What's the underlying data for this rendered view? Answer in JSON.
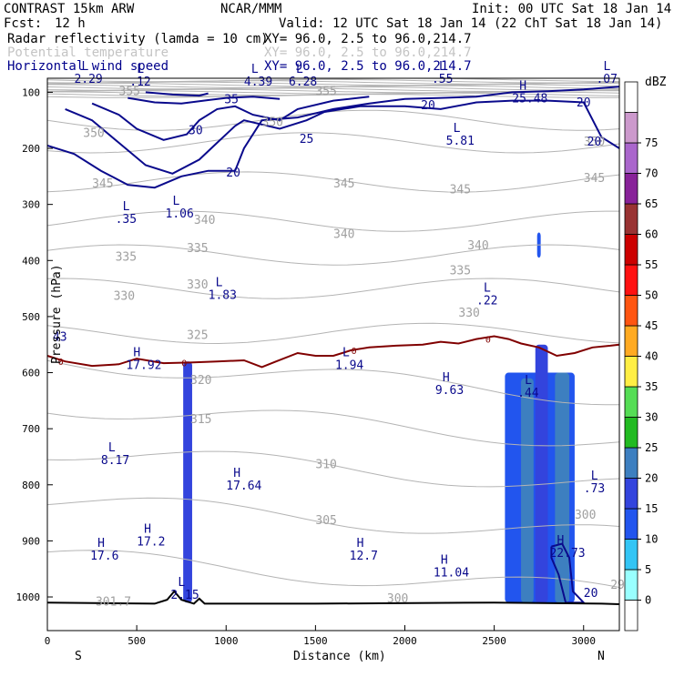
{
  "header": {
    "model": "CONTRAST 15km ARW",
    "org": "NCAR/MMM",
    "init": "Init: 00 UTC Sat 18 Jan 14",
    "fcst_label": "Fcst:",
    "fcst_value": "12 h",
    "valid": "Valid: 12 UTC Sat 18 Jan 14 (22 ChT Sat 18 Jan 14)",
    "fields": [
      {
        "name": "Radar reflectivity (lamda = 10 cm)",
        "xy": "XY=  96.0,  2.5 to  96.0,214.7",
        "color": "#000000"
      },
      {
        "name": "Potential temperature",
        "xy": "XY=  96.0,  2.5 to  96.0,214.7",
        "color": "#b4b4b4"
      },
      {
        "name": "Horizontal wind speed",
        "xy": "XY=  96.0,  2.5 to  96.0,214.7",
        "color": "#00008b"
      }
    ]
  },
  "chart_data": {
    "type": "cross-section",
    "xlabel": "Distance (km)",
    "ylabel": "Pressure (hPa)",
    "xlim": [
      0,
      3200
    ],
    "ylim": [
      1060,
      75
    ],
    "x_ticks": [
      0,
      500,
      1000,
      1500,
      2000,
      2500,
      3000
    ],
    "y_ticks": [
      100,
      200,
      300,
      400,
      500,
      600,
      700,
      800,
      900,
      1000
    ],
    "direction_left": "S",
    "direction_right": "N",
    "colorbar": {
      "unit": "dBZ",
      "levels": [
        0,
        5,
        10,
        15,
        20,
        25,
        30,
        35,
        40,
        45,
        50,
        55,
        60,
        65,
        70,
        75
      ],
      "colors": [
        "#ffffff",
        "#99ffff",
        "#33c5f5",
        "#2255ee",
        "#3344dd",
        "#3d7fc0",
        "#22bb22",
        "#55dd55",
        "#ffee44",
        "#ffaa22",
        "#ff5511",
        "#ff1111",
        "#cc0000",
        "#993333",
        "#882299",
        "#aa66cc",
        "#cc99cc",
        "#ffffff"
      ]
    },
    "reflectivity_columns": [
      {
        "x0": 760,
        "x1": 810,
        "p_top": 580,
        "p_bot": 1010,
        "dbz": 15
      },
      {
        "x0": 2560,
        "x1": 2950,
        "p_top": 600,
        "p_bot": 1010,
        "dbz": 10
      },
      {
        "x0": 2650,
        "x1": 2720,
        "p_top": 610,
        "p_bot": 1010,
        "dbz": 20
      },
      {
        "x0": 2730,
        "x1": 2800,
        "p_top": 550,
        "p_bot": 1010,
        "dbz": 15
      },
      {
        "x0": 2840,
        "x1": 2920,
        "p_top": 600,
        "p_bot": 1010,
        "dbz": 20
      },
      {
        "x0": 2740,
        "x1": 2760,
        "p_top": 350,
        "p_bot": 395,
        "dbz": 10
      }
    ],
    "theta_labels": [
      {
        "x": 400,
        "p": 105,
        "text": "355"
      },
      {
        "x": 1500,
        "p": 105,
        "text": "355"
      },
      {
        "x": 1200,
        "p": 160,
        "text": "350"
      },
      {
        "x": 200,
        "p": 180,
        "text": "350"
      },
      {
        "x": 3000,
        "p": 195,
        "text": "350"
      },
      {
        "x": 250,
        "p": 270,
        "text": "345"
      },
      {
        "x": 1600,
        "p": 270,
        "text": "345"
      },
      {
        "x": 2250,
        "p": 280,
        "text": "345"
      },
      {
        "x": 3000,
        "p": 260,
        "text": "345"
      },
      {
        "x": 820,
        "p": 335,
        "text": "340"
      },
      {
        "x": 1600,
        "p": 360,
        "text": "340"
      },
      {
        "x": 2350,
        "p": 380,
        "text": "340"
      },
      {
        "x": 380,
        "p": 400,
        "text": "335"
      },
      {
        "x": 780,
        "p": 385,
        "text": "335"
      },
      {
        "x": 2250,
        "p": 425,
        "text": "335"
      },
      {
        "x": 780,
        "p": 450,
        "text": "330"
      },
      {
        "x": 370,
        "p": 470,
        "text": "330"
      },
      {
        "x": 2300,
        "p": 500,
        "text": "330"
      },
      {
        "x": 780,
        "p": 540,
        "text": "325"
      },
      {
        "x": 800,
        "p": 620,
        "text": "320"
      },
      {
        "x": 800,
        "p": 690,
        "text": "315"
      },
      {
        "x": 1500,
        "p": 770,
        "text": "310"
      },
      {
        "x": 1500,
        "p": 870,
        "text": "305"
      },
      {
        "x": 2950,
        "p": 860,
        "text": "300"
      },
      {
        "x": 1900,
        "p": 1010,
        "text": "300"
      },
      {
        "x": 3150,
        "p": 985,
        "text": "295"
      },
      {
        "x": 270,
        "p": 1015,
        "text": "301.7"
      }
    ],
    "extrema_labels": [
      {
        "x": 150,
        "p": 80,
        "kind": "L",
        "value": "2.29"
      },
      {
        "x": 460,
        "p": 85,
        "kind": "L",
        "value": ".12"
      },
      {
        "x": 1100,
        "p": 85,
        "kind": "L",
        "value": "4.39"
      },
      {
        "x": 1350,
        "p": 85,
        "kind": "L",
        "value": "6.28"
      },
      {
        "x": 2150,
        "p": 80,
        "kind": "L",
        "value": ".55"
      },
      {
        "x": 3070,
        "p": 80,
        "kind": "L",
        "value": ".07"
      },
      {
        "x": 2600,
        "p": 115,
        "kind": "H",
        "value": "25.48"
      },
      {
        "x": 2230,
        "p": 190,
        "kind": "L",
        "value": "5.81"
      },
      {
        "x": 380,
        "p": 330,
        "kind": "L",
        "value": ".35"
      },
      {
        "x": 660,
        "p": 320,
        "kind": "L",
        "value": "1.06"
      },
      {
        "x": 900,
        "p": 465,
        "kind": "L",
        "value": "1.83"
      },
      {
        "x": 2400,
        "p": 475,
        "kind": "L",
        "value": ".22"
      },
      {
        "x": 30,
        "p": 540,
        "kind": "",
        "value": "43"
      },
      {
        "x": 440,
        "p": 590,
        "kind": "H",
        "value": "17.92"
      },
      {
        "x": 1610,
        "p": 590,
        "kind": "L",
        "value": "1.94"
      },
      {
        "x": 2170,
        "p": 635,
        "kind": "H",
        "value": "9.63"
      },
      {
        "x": 2630,
        "p": 640,
        "kind": "L",
        "value": ".44"
      },
      {
        "x": 300,
        "p": 760,
        "kind": "L",
        "value": "8.17"
      },
      {
        "x": 1000,
        "p": 805,
        "kind": "H",
        "value": "17.64"
      },
      {
        "x": 3000,
        "p": 810,
        "kind": "L",
        "value": ".73"
      },
      {
        "x": 500,
        "p": 905,
        "kind": "H",
        "value": "17.2"
      },
      {
        "x": 240,
        "p": 930,
        "kind": "H",
        "value": "17.6"
      },
      {
        "x": 1690,
        "p": 930,
        "kind": "H",
        "value": "12.7"
      },
      {
        "x": 2810,
        "p": 925,
        "kind": "H",
        "value": "22.73"
      },
      {
        "x": 2160,
        "p": 960,
        "kind": "H",
        "value": "11.04"
      },
      {
        "x": 690,
        "p": 1000,
        "kind": "L",
        "value": "2.15"
      }
    ],
    "wind_labels": [
      {
        "x": 990,
        "p": 120,
        "text": "35"
      },
      {
        "x": 2090,
        "p": 130,
        "text": "20"
      },
      {
        "x": 2960,
        "p": 125,
        "text": "20"
      },
      {
        "x": 790,
        "p": 175,
        "text": "30"
      },
      {
        "x": 1410,
        "p": 190,
        "text": "25"
      },
      {
        "x": 3020,
        "p": 195,
        "text": "20"
      },
      {
        "x": 1000,
        "p": 250,
        "text": "20"
      },
      {
        "x": 3000,
        "p": 1000,
        "text": "20"
      }
    ],
    "freezing_label": "0",
    "freezing_level": [
      {
        "x": 0,
        "p": 570
      },
      {
        "x": 100,
        "p": 580
      },
      {
        "x": 250,
        "p": 588
      },
      {
        "x": 400,
        "p": 585
      },
      {
        "x": 500,
        "p": 575
      },
      {
        "x": 650,
        "p": 583
      },
      {
        "x": 800,
        "p": 582
      },
      {
        "x": 950,
        "p": 580
      },
      {
        "x": 1100,
        "p": 578
      },
      {
        "x": 1200,
        "p": 590
      },
      {
        "x": 1280,
        "p": 580
      },
      {
        "x": 1400,
        "p": 565
      },
      {
        "x": 1500,
        "p": 570
      },
      {
        "x": 1600,
        "p": 570
      },
      {
        "x": 1700,
        "p": 560
      },
      {
        "x": 1800,
        "p": 555
      },
      {
        "x": 1950,
        "p": 552
      },
      {
        "x": 2100,
        "p": 550
      },
      {
        "x": 2200,
        "p": 545
      },
      {
        "x": 2300,
        "p": 548
      },
      {
        "x": 2400,
        "p": 540
      },
      {
        "x": 2500,
        "p": 535
      },
      {
        "x": 2580,
        "p": 540
      },
      {
        "x": 2650,
        "p": 548
      },
      {
        "x": 2750,
        "p": 555
      },
      {
        "x": 2850,
        "p": 570
      },
      {
        "x": 2950,
        "p": 565
      },
      {
        "x": 3050,
        "p": 555
      },
      {
        "x": 3150,
        "p": 552
      },
      {
        "x": 3200,
        "p": 550
      }
    ],
    "terrain": [
      {
        "x": 0,
        "p": 1010
      },
      {
        "x": 600,
        "p": 1012
      },
      {
        "x": 670,
        "p": 1005
      },
      {
        "x": 710,
        "p": 990
      },
      {
        "x": 750,
        "p": 1005
      },
      {
        "x": 820,
        "p": 1012
      },
      {
        "x": 850,
        "p": 1003
      },
      {
        "x": 880,
        "p": 1012
      },
      {
        "x": 1500,
        "p": 1012
      },
      {
        "x": 2500,
        "p": 1010
      },
      {
        "x": 3100,
        "p": 1012
      },
      {
        "x": 3200,
        "p": 1013
      }
    ]
  }
}
